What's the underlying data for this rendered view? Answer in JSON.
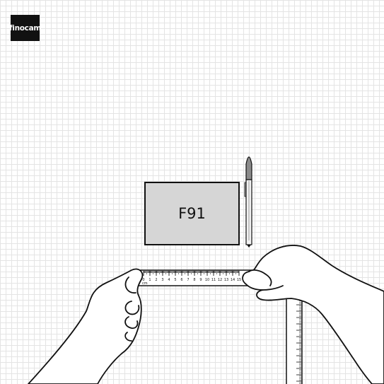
{
  "brand": {
    "logo_text": "finocam"
  },
  "product": {
    "code": "F91"
  },
  "ruler": {
    "unit": "cm",
    "ticks": [
      "0",
      "1",
      "2",
      "3",
      "4",
      "5",
      "6",
      "7",
      "8",
      "9",
      "10",
      "11",
      "12",
      "13",
      "14",
      "15"
    ]
  },
  "colors": {
    "grid": "#e4e4e4",
    "card_fill": "#d6d6d6",
    "ink": "#111111",
    "pen_cap": "#8a8a8a"
  }
}
